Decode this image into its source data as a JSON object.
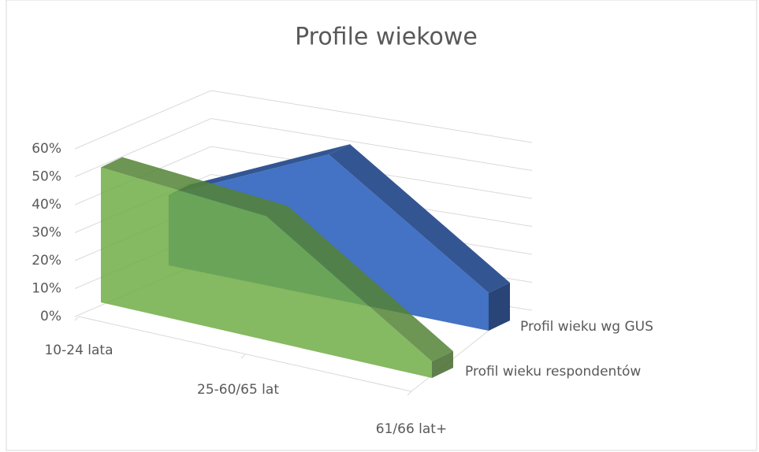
{
  "chart_data": {
    "type": "area3d",
    "title": "Profile wiekowe",
    "categories": [
      "10-24 lata",
      "25-60/65 lat",
      "61/66 lat+"
    ],
    "series": [
      {
        "name": "Profil wieku respondentów",
        "color": "#70ad47",
        "values": [
          49,
          45,
          6
        ]
      },
      {
        "name": "Profil wieku wg GUS",
        "color": "#4472c4",
        "values": [
          28,
          57,
          15
        ]
      }
    ],
    "ylim": [
      0,
      60
    ],
    "yticks": [
      {
        "value": 0,
        "label": "0%"
      },
      {
        "value": 10,
        "label": "10%"
      },
      {
        "value": 20,
        "label": "20%"
      },
      {
        "value": 30,
        "label": "30%"
      },
      {
        "value": 40,
        "label": "40%"
      },
      {
        "value": 50,
        "label": "50%"
      },
      {
        "value": 60,
        "label": "60%"
      }
    ],
    "grid": true
  }
}
